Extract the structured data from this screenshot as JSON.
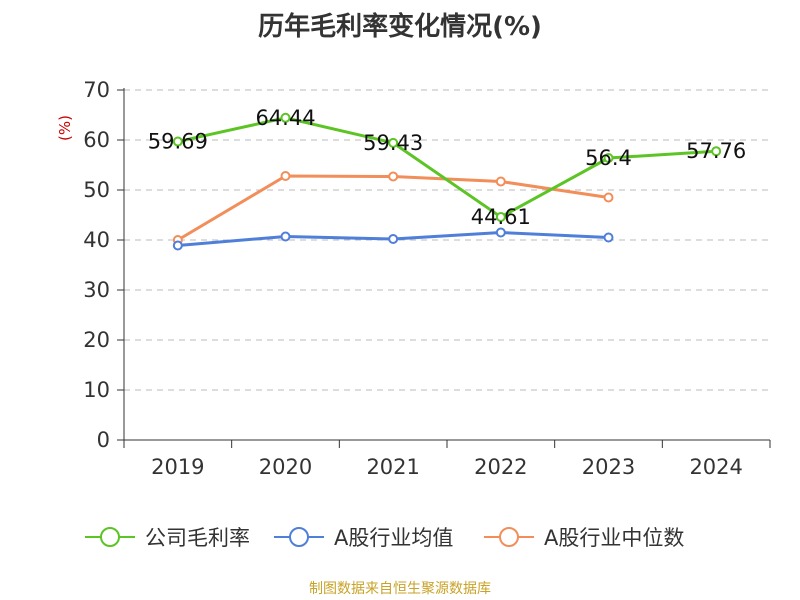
{
  "page": {
    "source": "制图数据来自恒生聚源数据库"
  },
  "chart_data": {
    "type": "line",
    "title": "历年毛利率变化情况(%)",
    "ylabel": "(%)",
    "xlabel": "",
    "categories": [
      "2019",
      "2020",
      "2021",
      "2022",
      "2023",
      "2024"
    ],
    "ylim": [
      0,
      70
    ],
    "yticks": [
      0,
      10,
      20,
      30,
      40,
      50,
      60,
      70
    ],
    "grid": true,
    "legend_position": "bottom",
    "series": [
      {
        "name": "公司毛利率",
        "color": "#5cc424",
        "values": [
          59.69,
          64.44,
          59.43,
          44.61,
          56.4,
          57.76
        ],
        "labels": [
          "59.69",
          "64.44",
          "59.43",
          "44.61",
          "56.4",
          "57.76"
        ]
      },
      {
        "name": "A股行业均值",
        "color": "#4f7fd8",
        "values": [
          38.9,
          40.7,
          40.2,
          41.5,
          40.5,
          null
        ]
      },
      {
        "name": "A股行业中位数",
        "color": "#f28e5a",
        "values": [
          40.0,
          52.8,
          52.7,
          51.7,
          48.5,
          null
        ]
      }
    ]
  }
}
